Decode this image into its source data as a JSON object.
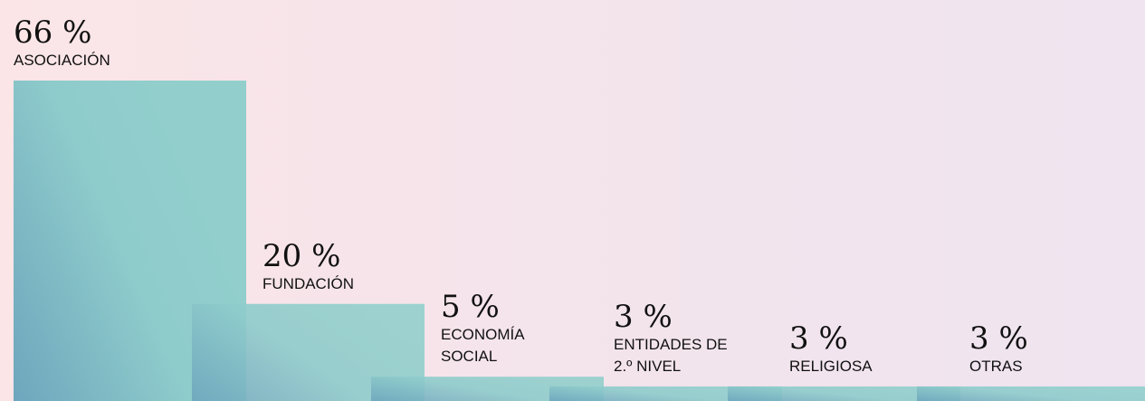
{
  "chart_data": {
    "type": "bar",
    "categories": [
      "ASOCIACIÓN",
      "FUNDACIÓN",
      "ECONOMÍA SOCIAL",
      "ENTIDADES DE 2.º NIVEL",
      "RELIGIOSA",
      "OTRAS"
    ],
    "values": [
      66,
      20,
      5,
      3,
      3,
      3
    ],
    "value_labels": [
      "66 %",
      "20 %",
      "5 %",
      "3 %",
      "3 %",
      "3 %"
    ],
    "color": "#8ecbcb",
    "ylim": [
      0,
      66
    ]
  }
}
